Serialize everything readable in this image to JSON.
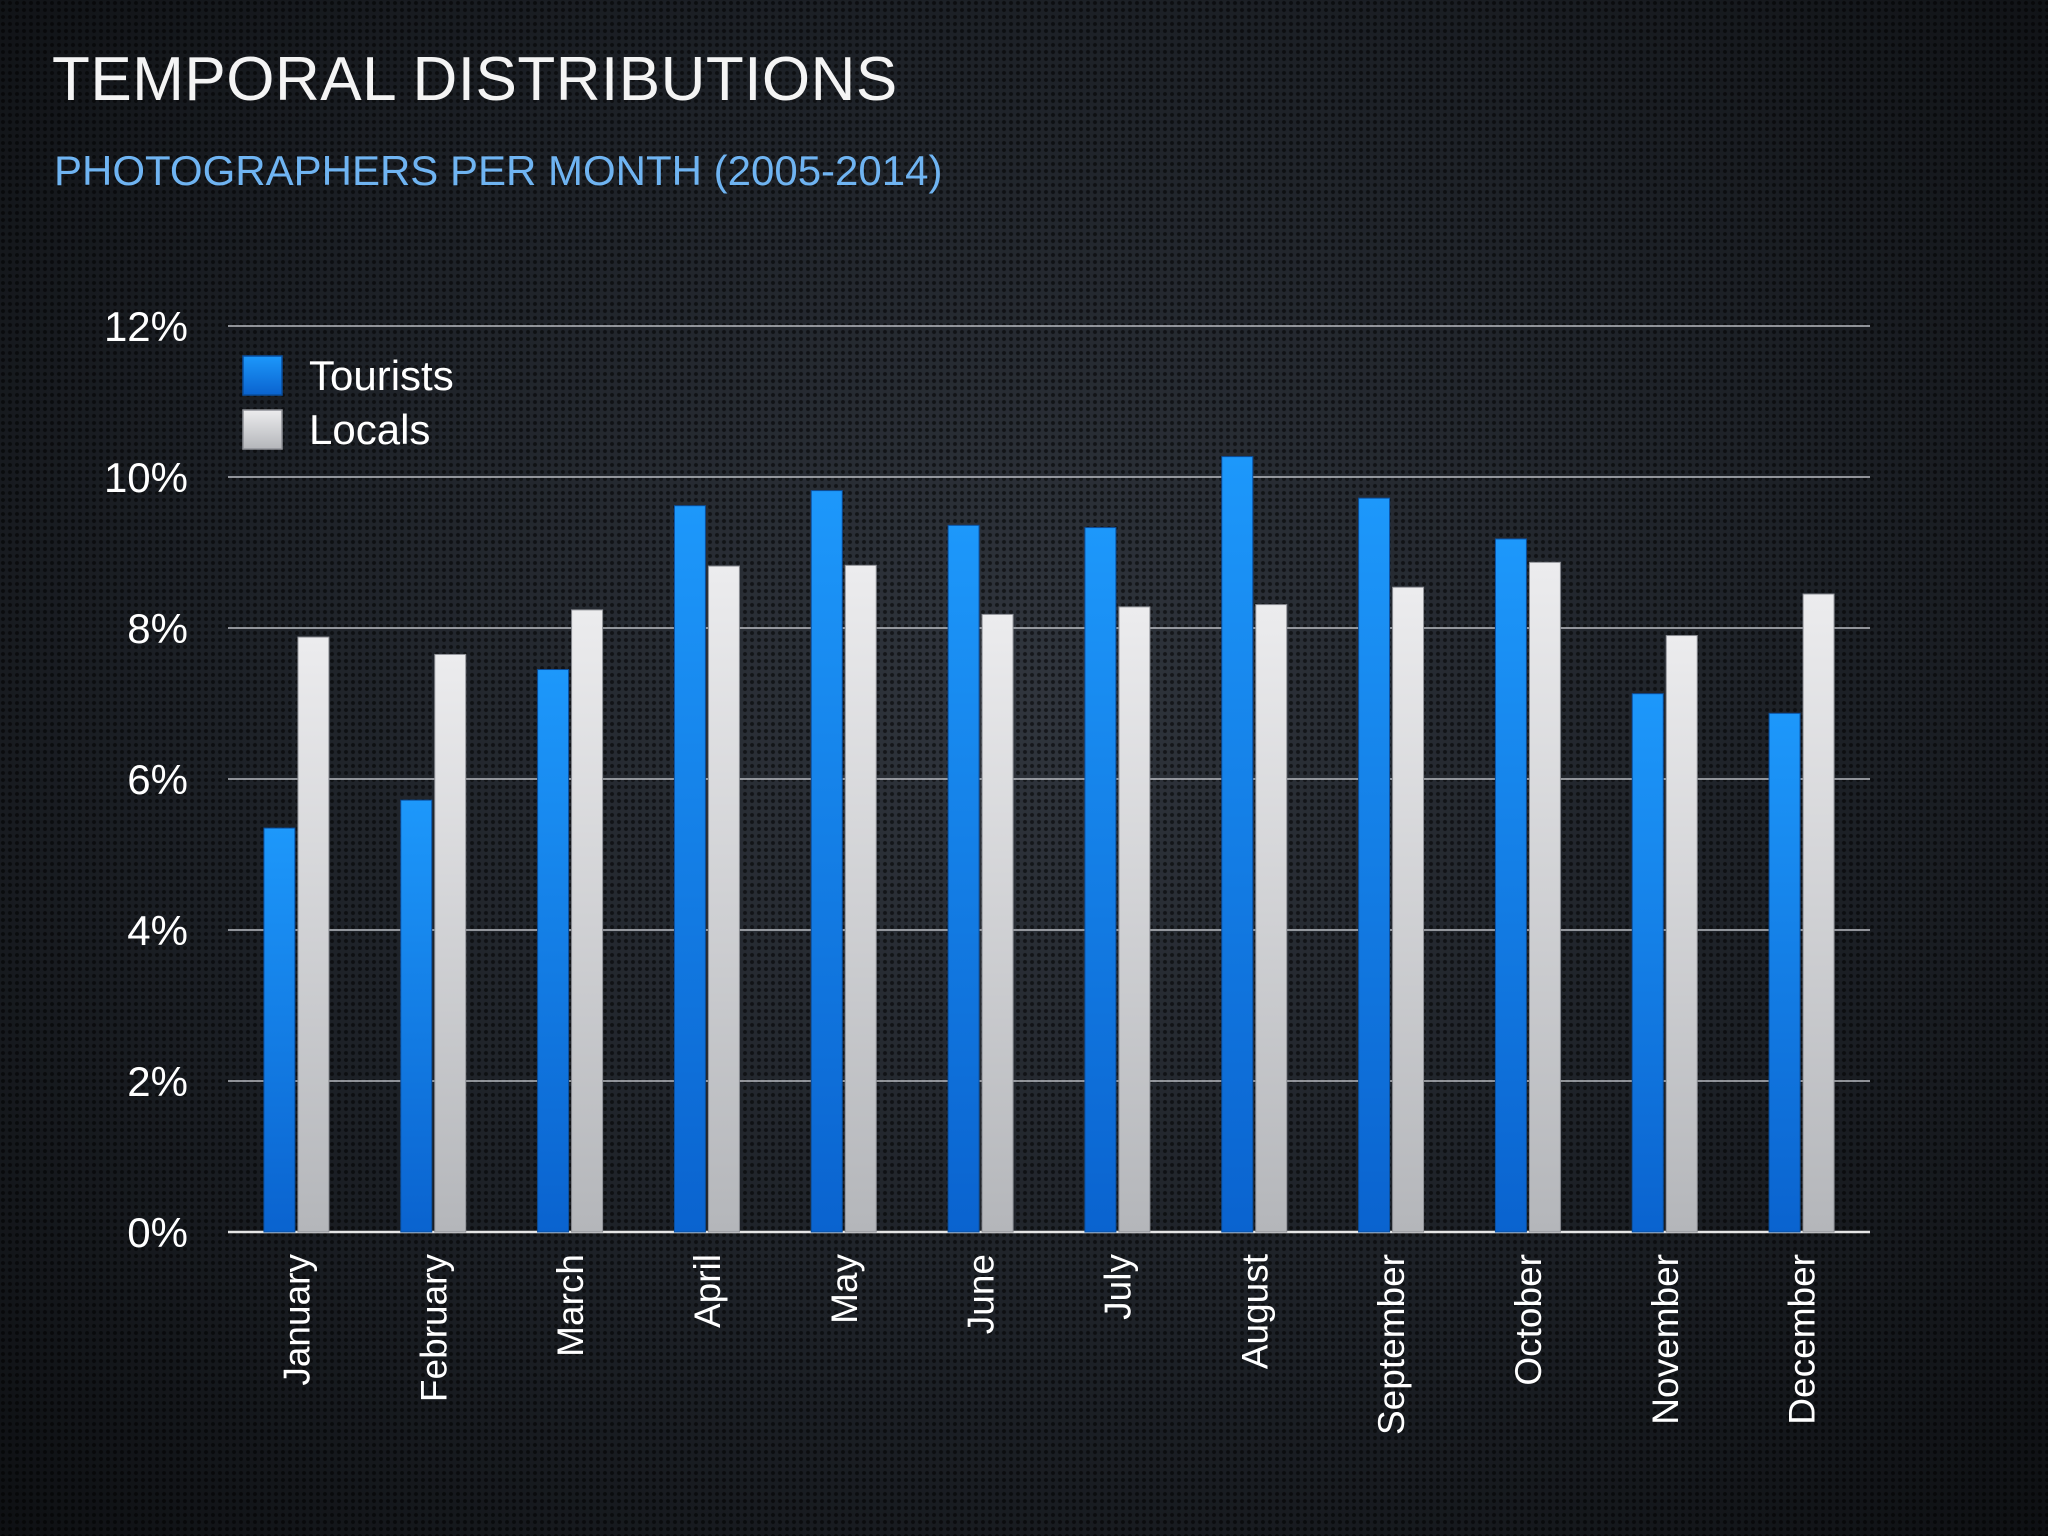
{
  "slide": {
    "title": "TEMPORAL DISTRIBUTIONS",
    "subtitle": "PHOTOGRAPHERS PER MONTH (2005-2014)"
  },
  "chart_data": {
    "type": "bar",
    "categories": [
      "January",
      "February",
      "March",
      "April",
      "May",
      "June",
      "July",
      "August",
      "September",
      "October",
      "November",
      "December"
    ],
    "series": [
      {
        "name": "Tourists",
        "color": "#1a8cf0",
        "values": [
          5.35,
          5.72,
          7.45,
          9.62,
          9.82,
          9.36,
          9.33,
          10.27,
          9.72,
          9.18,
          7.13,
          6.87
        ]
      },
      {
        "name": "Locals",
        "color": "#d6d8dc",
        "values": [
          7.88,
          7.65,
          8.24,
          8.82,
          8.83,
          8.18,
          8.28,
          8.31,
          8.54,
          8.87,
          7.9,
          8.45
        ]
      }
    ],
    "ylim": [
      0,
      12
    ],
    "yticks": [
      0,
      2,
      4,
      6,
      8,
      10,
      12
    ],
    "ytick_labels": [
      "0%",
      "2%",
      "4%",
      "6%",
      "8%",
      "10%",
      "12%"
    ],
    "grid": true,
    "legend_position": "top-left"
  }
}
